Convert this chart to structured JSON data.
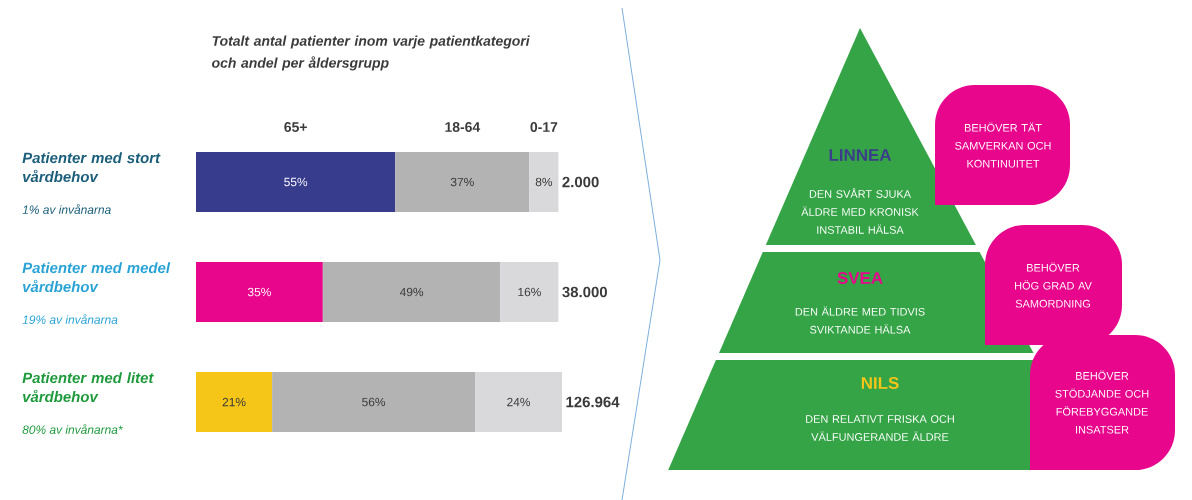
{
  "chart_data": [
    {
      "type": "bar",
      "orientation": "horizontal",
      "stacked": true,
      "title": "Totalt antal patienter inom varje patientkategori och andel per åldersgrupp",
      "categories": [
        "Patienter med stort vårdbehov",
        "Patienter med medel vårdbehov",
        "Patienter med litet vårdbehov"
      ],
      "series": [
        {
          "name": "65+",
          "colors": [
            "#383c8c",
            "#e8068c",
            "#f5c518"
          ],
          "values": [
            55,
            35,
            21
          ],
          "value_labels": [
            "55%",
            "35%",
            "21%"
          ]
        },
        {
          "name": "18-64",
          "color": "#b3b3b4",
          "values": [
            37,
            49,
            56
          ],
          "value_labels": [
            "37%",
            "49%",
            "56%"
          ]
        },
        {
          "name": "0-17",
          "color": "#d9d9db",
          "values": [
            8,
            16,
            24
          ],
          "value_labels": [
            "8%",
            "16%",
            "24%"
          ]
        }
      ],
      "annotations": [
        "1% av invånarna",
        "19% av invånarna",
        "80% av invånarna*",
        "2.000",
        "38.000",
        "126.964"
      ],
      "legend": "top",
      "xlim": [
        0,
        101
      ]
    },
    {
      "type": "other",
      "categories": [
        "LINNEA",
        "SVEA",
        "NILS"
      ],
      "annotations": [
        "DEN SVÅRT SJUKA ÄLDRE MED KRONISK INSTABIL HÄLSA",
        "DEN ÄLDRE MED TIDVIS SVIKTANDE HÄLSA",
        "DEN RELATIVT FRISKA OCH VÄLFUNGERANDE ÄLDRE",
        "BEHÖVER TÄT SAMVERKAN OCH KONTINUITET",
        "BEHÖVER HÖG GRAD AV SAMORDNING",
        "BEHÖVER STÖDJANDE OCH FÖREBYGGANDE INSATSER"
      ]
    }
  ]
}
